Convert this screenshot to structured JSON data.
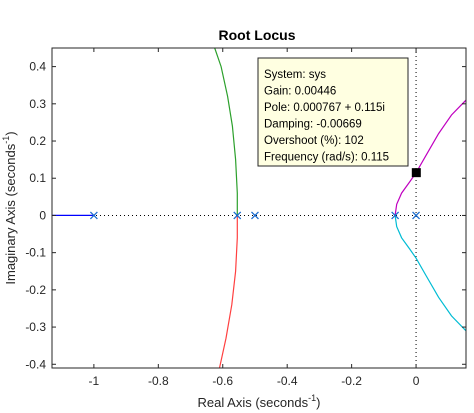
{
  "chart_data": {
    "type": "line",
    "title": "Root Locus",
    "xlabel": "Real Axis (seconds",
    "xlabel_sup": "-1",
    "xlabel_close": ")",
    "ylabel": "Imaginary Axis (seconds",
    "ylabel_sup": "-1",
    "ylabel_close": ")",
    "xlim": [
      -1.13,
      0.155
    ],
    "ylim": [
      -0.41,
      0.45
    ],
    "xticks": [
      -1,
      -0.8,
      -0.6,
      -0.4,
      -0.2,
      0
    ],
    "xtick_labels": [
      "-1",
      "-0.8",
      "-0.6",
      "-0.4",
      "-0.2",
      "0"
    ],
    "yticks": [
      0.4,
      0.3,
      0.2,
      0.1,
      0,
      -0.1,
      -0.2,
      -0.3,
      -0.4
    ],
    "ytick_labels": [
      "0.4",
      "0.3",
      "0.2",
      "0.1",
      "0",
      "-0.1",
      "-0.2",
      "-0.3",
      "-0.4"
    ],
    "grid": false,
    "series": [
      {
        "color": "#0000ff",
        "x": [
          -1.13,
          -1.0
        ],
        "y": [
          0,
          0
        ]
      },
      {
        "color": "#2ca02c",
        "x": [
          -0.555,
          -0.555,
          -0.56,
          -0.57,
          -0.585,
          -0.605,
          -0.625
        ],
        "y": [
          0,
          0.06,
          0.15,
          0.24,
          0.32,
          0.4,
          0.45
        ]
      },
      {
        "color": "#ff4040",
        "x": [
          -0.555,
          -0.555,
          -0.56,
          -0.572,
          -0.59,
          -0.61
        ],
        "y": [
          0,
          -0.06,
          -0.15,
          -0.24,
          -0.33,
          -0.41
        ]
      },
      {
        "color": "#c000c0",
        "x": [
          -0.065,
          -0.06,
          -0.045,
          -0.02,
          0.0,
          0.03,
          0.07,
          0.11,
          0.155
        ],
        "y": [
          0,
          0.03,
          0.06,
          0.09,
          0.115,
          0.16,
          0.22,
          0.27,
          0.31
        ]
      },
      {
        "color": "#00bcd4",
        "x": [
          -0.065,
          -0.06,
          -0.045,
          -0.02,
          0.0,
          0.03,
          0.07,
          0.11,
          0.155
        ],
        "y": [
          0,
          -0.03,
          -0.06,
          -0.09,
          -0.115,
          -0.16,
          -0.22,
          -0.27,
          -0.31
        ]
      }
    ],
    "poles": [
      {
        "x": -1.0,
        "y": 0
      },
      {
        "x": -0.555,
        "y": 0
      },
      {
        "x": -0.5,
        "y": 0
      },
      {
        "x": -0.065,
        "y": 0
      },
      {
        "x": 0.0,
        "y": 0
      }
    ],
    "selected_point": {
      "x": 0.000767,
      "y": 0.115
    },
    "datatip": {
      "lines": [
        "System: sys",
        "Gain: 0.00446",
        "Pole: 0.000767 + 0.115i",
        "Damping: -0.00669",
        "Overshoot (%): 102",
        "Frequency (rad/s): 0.115"
      ],
      "background": "#ffffe1"
    }
  }
}
